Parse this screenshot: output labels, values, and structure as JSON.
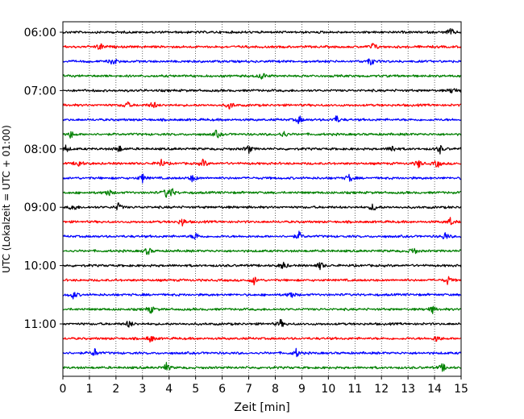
{
  "chart_data": {
    "type": "line",
    "subtype": "helicorder",
    "xlabel": "Zeit  [min]",
    "ylabel": "UTC (Lokalzeit = UTC + 01:00)",
    "xlim": [
      0,
      15
    ],
    "x_ticks": [
      "0",
      "1",
      "2",
      "3",
      "4",
      "5",
      "6",
      "7",
      "8",
      "9",
      "10",
      "11",
      "12",
      "13",
      "14",
      "15"
    ],
    "y_tick_labels": [
      "06:00",
      "07:00",
      "08:00",
      "09:00",
      "10:00",
      "11:00"
    ],
    "vertical_grid": "dotted",
    "trace_interval_minutes": 15,
    "color_cycle": [
      "#000000",
      "#ff0000",
      "#0000ff",
      "#008000"
    ],
    "traces": [
      {
        "start": "06:00",
        "color": "#000000",
        "events_min": [
          14.6
        ]
      },
      {
        "start": "06:15",
        "color": "#ff0000",
        "events_min": [
          1.4,
          11.7
        ]
      },
      {
        "start": "06:30",
        "color": "#0000ff",
        "events_min": [
          1.9,
          11.6
        ]
      },
      {
        "start": "06:45",
        "color": "#008000",
        "events_min": [
          7.5
        ]
      },
      {
        "start": "07:00",
        "color": "#000000",
        "events_min": [
          14.7
        ]
      },
      {
        "start": "07:15",
        "color": "#ff0000",
        "events_min": [
          2.4,
          3.4,
          6.3
        ]
      },
      {
        "start": "07:30",
        "color": "#0000ff",
        "events_min": [
          8.9,
          10.3
        ]
      },
      {
        "start": "07:45",
        "color": "#008000",
        "events_min": [
          0.3,
          5.8,
          8.3
        ]
      },
      {
        "start": "08:00",
        "color": "#000000",
        "events_min": [
          0.1,
          2.1,
          7.0,
          12.4,
          14.2
        ]
      },
      {
        "start": "08:15",
        "color": "#ff0000",
        "events_min": [
          0.6,
          3.7,
          5.3,
          13.4,
          14.1
        ]
      },
      {
        "start": "08:30",
        "color": "#0000ff",
        "events_min": [
          3.0,
          4.9,
          10.8
        ]
      },
      {
        "start": "08:45",
        "color": "#008000",
        "events_min": [
          1.7,
          3.9,
          4.1
        ]
      },
      {
        "start": "09:00",
        "color": "#000000",
        "events_min": [
          0.4,
          2.1,
          11.7
        ]
      },
      {
        "start": "09:15",
        "color": "#ff0000",
        "events_min": [
          4.5,
          14.6
        ]
      },
      {
        "start": "09:30",
        "color": "#0000ff",
        "events_min": [
          5.0,
          8.9,
          14.4
        ]
      },
      {
        "start": "09:45",
        "color": "#008000",
        "events_min": [
          3.2,
          13.2
        ]
      },
      {
        "start": "10:00",
        "color": "#000000",
        "events_min": [
          8.3,
          9.7
        ]
      },
      {
        "start": "10:15",
        "color": "#ff0000",
        "events_min": [
          7.2,
          14.5
        ]
      },
      {
        "start": "10:30",
        "color": "#0000ff",
        "events_min": [
          0.4,
          8.6
        ]
      },
      {
        "start": "10:45",
        "color": "#008000",
        "events_min": [
          3.3,
          13.9
        ]
      },
      {
        "start": "11:00",
        "color": "#000000",
        "events_min": [
          2.5,
          8.2
        ]
      },
      {
        "start": "11:15",
        "color": "#ff0000",
        "events_min": [
          3.3,
          14.1
        ]
      },
      {
        "start": "11:30",
        "color": "#0000ff",
        "events_min": [
          1.2,
          8.8
        ]
      },
      {
        "start": "11:45",
        "color": "#008000",
        "events_min": [
          3.9,
          14.3
        ]
      }
    ]
  }
}
